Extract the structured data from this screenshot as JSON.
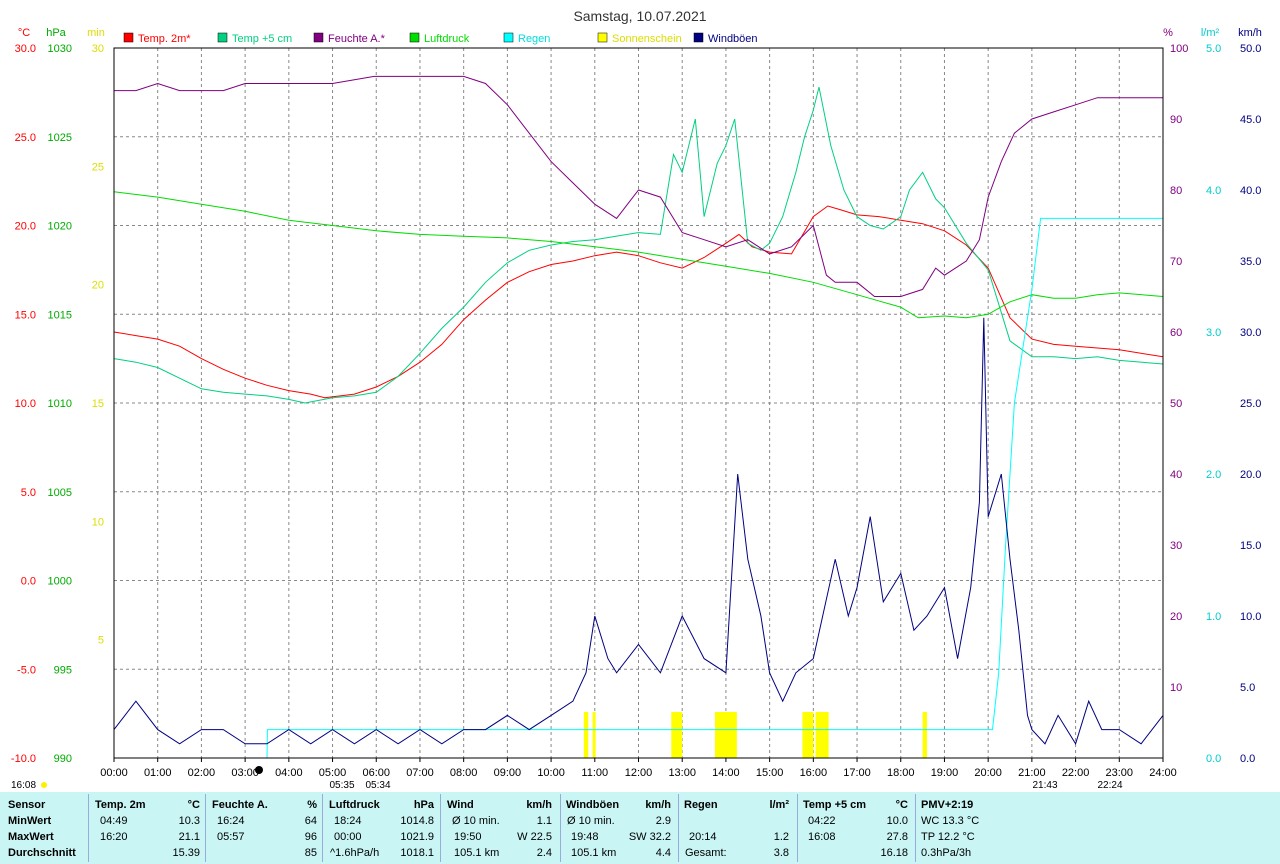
{
  "chart_data": {
    "type": "line",
    "title": "Samstag, 10.07.2021",
    "x_ticks": [
      "00:00",
      "01:00",
      "02:00",
      "03:00",
      "04:00",
      "05:00",
      "06:00",
      "07:00",
      "08:00",
      "09:00",
      "10:00",
      "11:00",
      "12:00",
      "13:00",
      "14:00",
      "15:00",
      "16:00",
      "17:00",
      "18:00",
      "19:00",
      "20:00",
      "21:00",
      "22:00",
      "23:00",
      "24:00"
    ],
    "xlim": [
      0,
      24
    ],
    "axes": {
      "temp_c": {
        "unit": "°C",
        "min": -10,
        "max": 30,
        "ticks": [
          "30.0",
          "25.0",
          "20.0",
          "15.0",
          "10.0",
          "5.0",
          "0.0",
          "-5.0",
          "-10.0"
        ],
        "color": "#ff0000"
      },
      "pressure": {
        "unit": "hPa",
        "min": 990,
        "max": 1030,
        "ticks": [
          "1030",
          "1025",
          "1020",
          "1015",
          "1010",
          "1005",
          "1000",
          "995",
          "990"
        ],
        "color": "#00aa00"
      },
      "sun_min": {
        "unit": "min",
        "min": 0,
        "max": 30,
        "ticks": [
          "30",
          "25",
          "20",
          "15",
          "10",
          "5"
        ],
        "color": "#ffff00"
      },
      "humidity": {
        "unit": "%",
        "min": 0,
        "max": 100,
        "ticks": [
          "100",
          "90",
          "80",
          "70",
          "60",
          "50",
          "40",
          "30",
          "20",
          "10"
        ],
        "color": "#800080"
      },
      "rain": {
        "unit": "l/m²",
        "min": 0,
        "max": 5,
        "ticks": [
          "5.0",
          "4.0",
          "3.0",
          "2.0",
          "1.0",
          "0.0"
        ],
        "color": "#00e5e5"
      },
      "wind": {
        "unit": "km/h",
        "min": 0,
        "max": 50,
        "ticks": [
          "50.0",
          "45.0",
          "40.0",
          "35.0",
          "30.0",
          "25.0",
          "20.0",
          "15.0",
          "10.0",
          "5.0",
          "0.0"
        ],
        "color": "#000080"
      }
    },
    "legend": [
      {
        "name": "Temp. 2m*",
        "color": "#ff0000"
      },
      {
        "name": "Temp +5 cm",
        "color": "#00d080"
      },
      {
        "name": "Feuchte A.*",
        "color": "#800080"
      },
      {
        "name": "Luftdruck",
        "color": "#00dd00"
      },
      {
        "name": "Regen",
        "color": "#00ffff"
      },
      {
        "name": "Sonnenschein",
        "color": "#ffff00"
      },
      {
        "name": "Windböen",
        "color": "#000080"
      }
    ],
    "sun_events": {
      "sunrise": "05:35",
      "sunset": "21:43",
      "moonrise": "05:34",
      "moonset": "22:24"
    },
    "series": [
      {
        "name": "Temp. 2m*",
        "axis": "temp_c",
        "color": "#ff0000",
        "x": [
          0,
          0.5,
          1,
          1.5,
          2,
          2.5,
          3,
          3.5,
          4,
          4.5,
          4.82,
          5.5,
          6,
          6.5,
          7,
          7.5,
          8,
          8.5,
          9,
          9.5,
          10,
          10.5,
          11,
          11.5,
          12,
          12.5,
          13,
          13.5,
          14,
          14.3,
          14.6,
          15,
          15.5,
          16,
          16.33,
          16.6,
          17,
          17.5,
          18,
          18.5,
          19,
          19.5,
          20,
          20.5,
          21,
          21.5,
          22,
          22.5,
          23,
          24
        ],
        "y": [
          14.0,
          13.8,
          13.6,
          13.2,
          12.5,
          11.9,
          11.4,
          11.0,
          10.7,
          10.5,
          10.3,
          10.5,
          10.9,
          11.5,
          12.3,
          13.3,
          14.7,
          15.8,
          16.8,
          17.4,
          17.8,
          18.0,
          18.3,
          18.5,
          18.3,
          17.9,
          17.6,
          18.2,
          19.0,
          19.5,
          18.8,
          18.5,
          18.4,
          20.5,
          21.1,
          20.9,
          20.6,
          20.5,
          20.3,
          20.1,
          19.7,
          18.9,
          17.6,
          14.8,
          13.6,
          13.3,
          13.2,
          13.1,
          13.0,
          12.6
        ]
      },
      {
        "name": "Temp +5 cm",
        "axis": "temp_c",
        "color": "#00d080",
        "x": [
          0,
          0.5,
          1,
          1.5,
          2,
          2.5,
          3,
          3.5,
          4,
          4.37,
          5,
          5.5,
          6,
          6.5,
          7,
          7.5,
          8,
          8.5,
          9,
          9.5,
          10,
          10.5,
          11,
          11.5,
          12,
          12.5,
          12.8,
          13,
          13.3,
          13.5,
          13.8,
          14,
          14.2,
          14.5,
          14.8,
          15,
          15.3,
          15.6,
          15.8,
          16,
          16.13,
          16.4,
          16.7,
          17,
          17.3,
          17.6,
          18,
          18.2,
          18.5,
          18.8,
          19,
          19.5,
          20,
          20.5,
          21,
          21.5,
          22,
          22.5,
          23,
          24
        ],
        "y": [
          12.5,
          12.3,
          12.0,
          11.4,
          10.8,
          10.6,
          10.5,
          10.4,
          10.2,
          10.0,
          10.3,
          10.4,
          10.6,
          11.5,
          12.8,
          14.2,
          15.4,
          16.8,
          17.9,
          18.6,
          18.9,
          19.1,
          19.2,
          19.4,
          19.6,
          19.5,
          24.0,
          23.0,
          26.0,
          20.5,
          23.5,
          24.5,
          26.0,
          19.0,
          18.6,
          19.0,
          20.5,
          23.0,
          25.0,
          26.5,
          27.8,
          24.5,
          22.0,
          20.5,
          20.0,
          19.8,
          20.5,
          22.0,
          23.0,
          21.5,
          21.0,
          19.0,
          17.5,
          13.5,
          12.6,
          12.6,
          12.5,
          12.6,
          12.4,
          12.2
        ]
      },
      {
        "name": "Feuchte A.*",
        "axis": "humidity",
        "color": "#800080",
        "x": [
          0,
          0.5,
          1,
          1.5,
          2,
          2.5,
          3,
          4,
          5,
          5.95,
          6.5,
          7,
          7.5,
          8,
          8.5,
          9,
          9.5,
          10,
          10.5,
          11,
          11.5,
          12,
          12.5,
          13,
          13.5,
          14,
          14.5,
          15,
          15.5,
          16,
          16.3,
          16.5,
          17,
          17.4,
          18,
          18.5,
          18.8,
          19,
          19.5,
          19.8,
          20,
          20.3,
          20.6,
          21,
          21.5,
          22,
          22.5,
          23,
          24
        ],
        "y": [
          94,
          94,
          95,
          94,
          94,
          94,
          95,
          95,
          95,
          96,
          96,
          96,
          96,
          96,
          95,
          92,
          88,
          84,
          81,
          78,
          76,
          80,
          79,
          74,
          73,
          72,
          73,
          71,
          72,
          75,
          68,
          67,
          67,
          65,
          65,
          66,
          69,
          68,
          70,
          73,
          79,
          84,
          88,
          90,
          91,
          92,
          93,
          93,
          93
        ]
      },
      {
        "name": "Luftdruck",
        "axis": "pressure",
        "color": "#00dd00",
        "x": [
          0,
          1,
          2,
          3,
          4,
          5,
          6,
          7,
          8,
          9,
          10,
          11,
          12,
          13,
          14,
          15,
          16,
          17,
          18,
          18.4,
          19,
          19.5,
          20,
          20.5,
          21,
          21.5,
          22,
          22.5,
          23,
          24
        ],
        "y": [
          1021.9,
          1021.6,
          1021.2,
          1020.8,
          1020.3,
          1020.0,
          1019.7,
          1019.5,
          1019.4,
          1019.3,
          1019.1,
          1018.8,
          1018.5,
          1018.1,
          1017.7,
          1017.3,
          1016.8,
          1016.1,
          1015.4,
          1014.8,
          1014.9,
          1014.8,
          1015.0,
          1015.7,
          1016.1,
          1015.9,
          1015.9,
          1016.1,
          1016.2,
          1016.0
        ]
      },
      {
        "name": "Regen",
        "axis": "rain",
        "color": "#00ffff",
        "x": [
          0,
          3.5,
          3.51,
          20.1,
          20.24,
          20.4,
          20.6,
          20.9,
          21.0,
          21.2,
          22,
          24
        ],
        "y": [
          0,
          0,
          0.2,
          0.2,
          0.6,
          1.5,
          2.5,
          3.1,
          3.3,
          3.8,
          3.8,
          3.8
        ]
      },
      {
        "name": "Windböen",
        "axis": "wind",
        "color": "#000080",
        "x": [
          0,
          0.5,
          1,
          1.5,
          2,
          2.5,
          3,
          3.5,
          4,
          4.5,
          5,
          5.5,
          6,
          6.5,
          7,
          7.5,
          8,
          8.5,
          9,
          9.5,
          10,
          10.5,
          10.8,
          11,
          11.3,
          11.5,
          12,
          12.5,
          13,
          13.5,
          14,
          14.27,
          14.5,
          14.8,
          15,
          15.3,
          15.6,
          16,
          16.5,
          16.8,
          17,
          17.3,
          17.6,
          18,
          18.3,
          18.6,
          19,
          19.3,
          19.6,
          19.8,
          19.9,
          20,
          20.3,
          20.5,
          20.7,
          20.9,
          21,
          21.3,
          21.6,
          22,
          22.3,
          22.6,
          23,
          23.5,
          24
        ],
        "y": [
          2,
          4,
          2,
          1,
          2,
          2,
          1,
          1,
          2,
          1,
          2,
          1,
          2,
          1,
          2,
          1,
          2,
          2,
          3,
          2,
          3,
          4,
          6,
          10,
          7,
          6,
          8,
          6,
          10,
          7,
          6,
          20,
          14,
          10,
          6,
          4,
          6,
          7,
          14,
          10,
          12,
          17,
          11,
          13,
          9,
          10,
          12,
          7,
          12,
          18,
          31,
          17,
          20,
          14,
          9,
          3,
          2,
          1,
          3,
          1,
          4,
          2,
          2,
          1,
          3
        ]
      }
    ],
    "sunshine_bars": [
      {
        "start": 10.75,
        "end": 10.85
      },
      {
        "start": 10.95,
        "end": 11.02
      },
      {
        "start": 12.75,
        "end": 13.0
      },
      {
        "start": 13.75,
        "end": 14.25
      },
      {
        "start": 15.75,
        "end": 16.0
      },
      {
        "start": 16.05,
        "end": 16.35
      },
      {
        "start": 18.5,
        "end": 18.6
      }
    ],
    "grid": true
  },
  "stats": {
    "sensor": {
      "title": "Sensor",
      "rows": [
        "MinWert",
        "MaxWert",
        "Durchschnitt"
      ]
    },
    "temp2m": {
      "title": "Temp. 2m",
      "unit": "°C",
      "min_time": "04:49",
      "min_val": "10.3",
      "max_time": "16:20",
      "max_val": "21.1",
      "avg": "15.39"
    },
    "feuchte": {
      "title": "Feuchte A.",
      "unit": "%",
      "min_time": "16:24",
      "min_val": "64",
      "max_time": "05:57",
      "max_val": "96",
      "avg": "85"
    },
    "luftdruck": {
      "title": "Luftdruck",
      "unit": "hPa",
      "min_time": "18:24",
      "min_val": "1014.8",
      "max_time": "00:00",
      "max_val": "1021.9",
      "avg_label": "^1.6hPa/h",
      "avg": "1018.1"
    },
    "wind": {
      "title": "Wind",
      "unit": "km/h",
      "row1_label": "Ø 10 min.",
      "row1_val": "1.1",
      "row2_time": "19:50",
      "row2_val": "W 22.5",
      "row3_label": "105.1 km",
      "row3_val": "2.4"
    },
    "windboeen": {
      "title": "Windböen",
      "unit": "km/h",
      "row1_label": "Ø 10 min.",
      "row1_val": "2.9",
      "row2_time": "19:48",
      "row2_val": "SW 32.2",
      "row3_label": "105.1 km",
      "row3_val": "4.4"
    },
    "regen": {
      "title": "Regen",
      "unit": "l/m²",
      "row2_time": "20:14",
      "row2_val": "1.2",
      "row3_label": "Gesamt:",
      "row3_val": "3.8"
    },
    "temp5cm": {
      "title": "Temp +5 cm",
      "unit": "°C",
      "min_time": "04:22",
      "min_val": "10.0",
      "max_time": "16:08",
      "max_val": "27.8",
      "avg": "16.18"
    },
    "pmv": {
      "title": "PMV+2:19",
      "row1": "WC 13.3 °C",
      "row2": "TP 12.2 °C",
      "row3": "0.3hPa/3h"
    }
  },
  "corner_time": "16:08"
}
